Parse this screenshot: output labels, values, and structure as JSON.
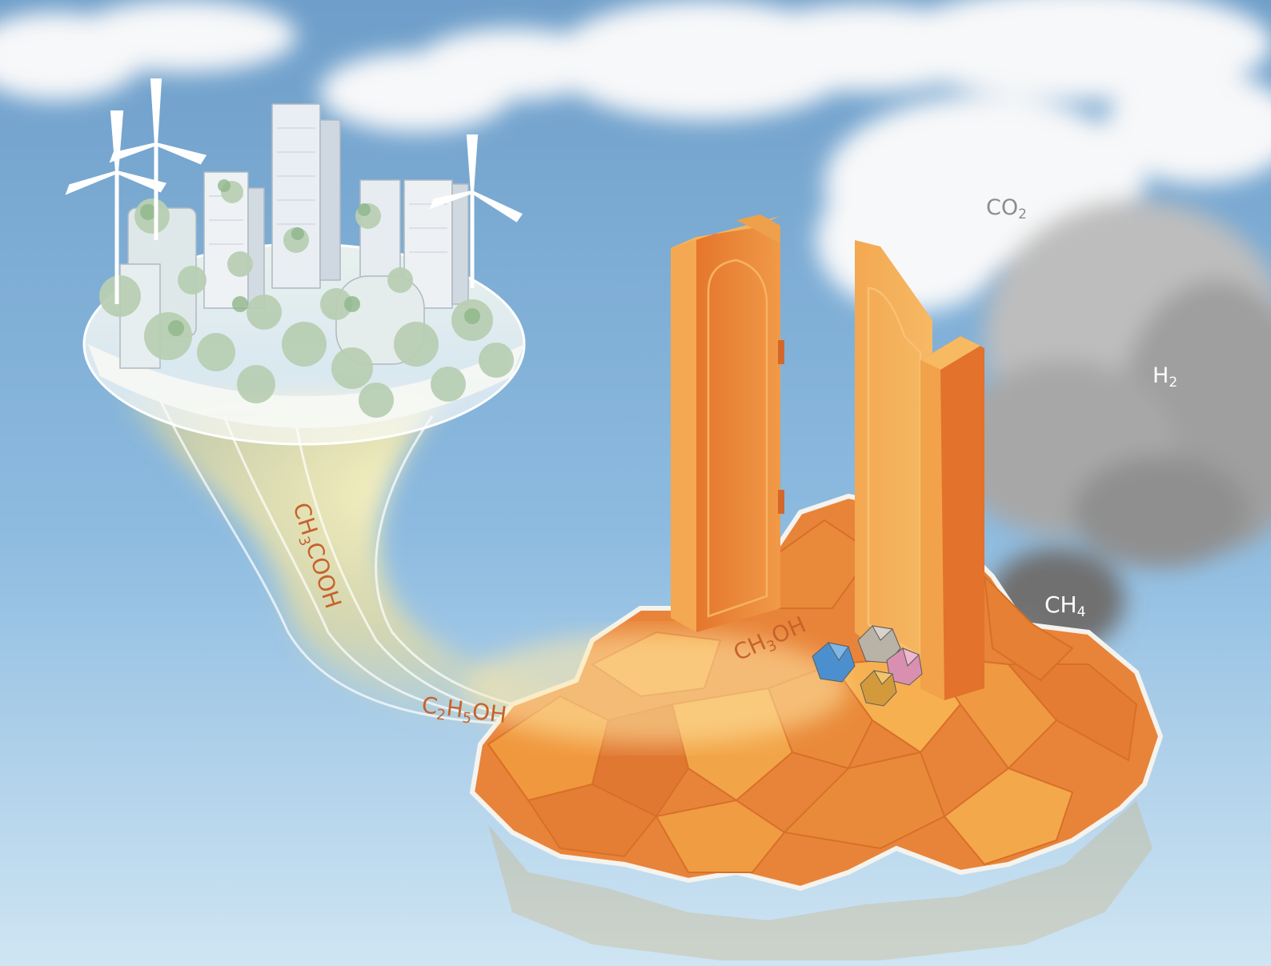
{
  "scene": {
    "colors": {
      "sky_top": "#6f9fca",
      "sky_bottom": "#c9e2f2",
      "cloud_white": "#f7f8f9",
      "smoke_gray": "#9a9a9a",
      "smoke_dark": "#6e6e6e",
      "rock_orange": "#e8843a",
      "rock_light": "#f2a64a",
      "door_orange": "#ec8a3c",
      "glow_yellow": "#fff1b0",
      "label_brown": "#c7622c",
      "label_gray": "#8c8c8c",
      "label_white": "#ffffff"
    },
    "icons": [
      "wind-turbine-icon",
      "green-city-island",
      "orange-rock-island",
      "open-door-icon",
      "crystal-cluster-icon",
      "smoke-cloud"
    ]
  },
  "labels": {
    "co2": {
      "main": "CO",
      "sub": "2"
    },
    "h2": {
      "main": "H",
      "sub": "2"
    },
    "ch4": {
      "main": "CH",
      "sub": "4",
      "tail": ""
    },
    "ch3cooh": {
      "a": "CH",
      "sub": "3",
      "b": "COOH"
    },
    "c2h5oh": {
      "a": "C",
      "sub1": "2",
      "b": "H",
      "sub2": "5",
      "c": "OH"
    },
    "ch3oh": {
      "a": "CH",
      "sub": "3",
      "b": "OH"
    }
  }
}
